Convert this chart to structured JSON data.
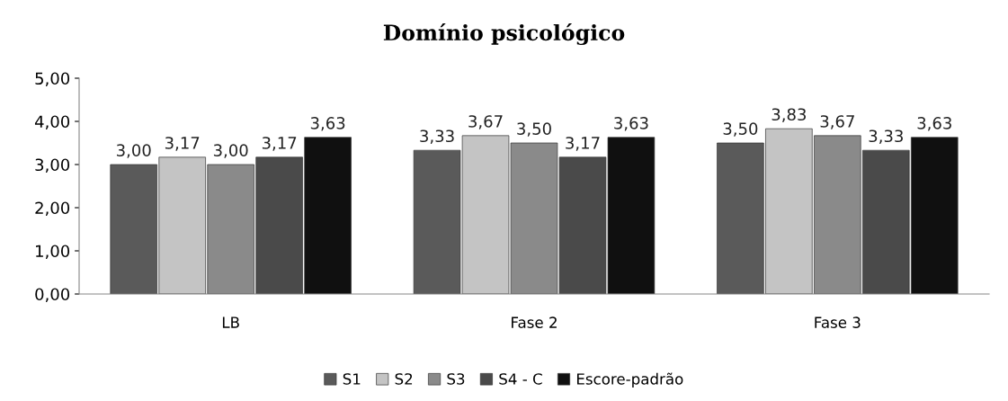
{
  "chart_data": {
    "type": "bar",
    "title": "Domínio psicológico",
    "categories": [
      "LB",
      "Fase 2",
      "Fase 3"
    ],
    "series": [
      {
        "name": "S1",
        "color": "#5a5a5a",
        "values": [
          3.0,
          3.33,
          3.5
        ],
        "value_labels": [
          "3,00",
          "3,33",
          "3,50"
        ]
      },
      {
        "name": "S2",
        "color": "#c4c4c4",
        "values": [
          3.17,
          3.67,
          3.83
        ],
        "value_labels": [
          "3,17",
          "3,67",
          "3,83"
        ]
      },
      {
        "name": "S3",
        "color": "#8a8a8a",
        "values": [
          3.0,
          3.5,
          3.67
        ],
        "value_labels": [
          "3,00",
          "3,50",
          "3,67"
        ]
      },
      {
        "name": "S4 - C",
        "color": "#4a4a4a",
        "values": [
          3.17,
          3.17,
          3.33
        ],
        "value_labels": [
          "3,17",
          "3,17",
          "3,33"
        ]
      },
      {
        "name": "Escore-padrão",
        "color": "#101010",
        "values": [
          3.63,
          3.63,
          3.63
        ],
        "value_labels": [
          "3,63",
          "3,63",
          "3,63"
        ]
      }
    ],
    "ylim": [
      0,
      5
    ],
    "yticks": [
      {
        "value": 0,
        "label": "0,00"
      },
      {
        "value": 1,
        "label": "1,00"
      },
      {
        "value": 2,
        "label": "2,00"
      },
      {
        "value": 3,
        "label": "3,00"
      },
      {
        "value": 4,
        "label": "4,00"
      },
      {
        "value": 5,
        "label": "5,00"
      }
    ],
    "grid": false,
    "legend": "bottom"
  }
}
